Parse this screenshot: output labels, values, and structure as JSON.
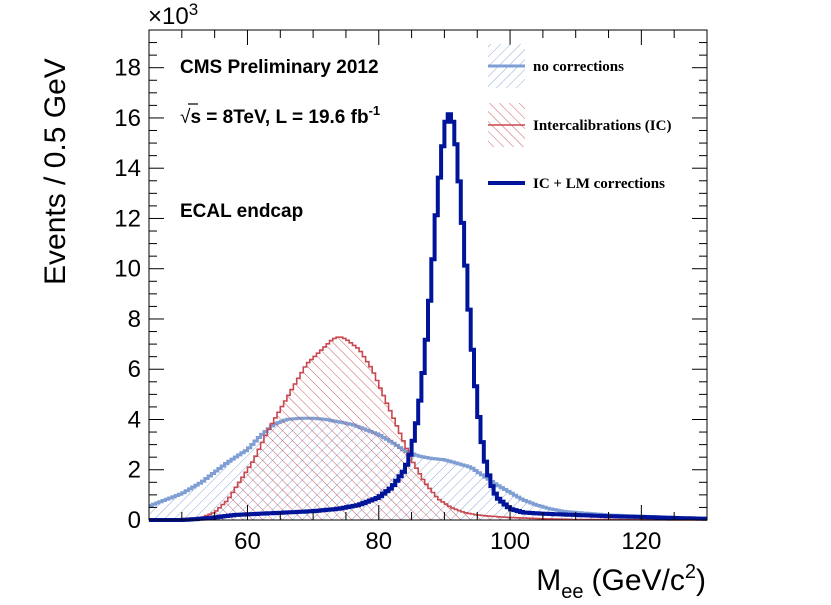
{
  "chart_data": {
    "type": "line",
    "title": "",
    "xlabel": "M",
    "xlabel_sub": "ee",
    "xlabel_unit": "(GeV/c",
    "xlabel_unit_sup": "2",
    "xlabel_unit_close": ")",
    "ylabel": "Events / 0.5 GeV",
    "y_multiplier": "×10",
    "y_multiplier_exp": "3",
    "xlim": [
      45,
      130
    ],
    "ylim": [
      0,
      19.5
    ],
    "x_ticks": [
      60,
      80,
      100,
      120
    ],
    "y_ticks": [
      0,
      2,
      4,
      6,
      8,
      10,
      12,
      14,
      16,
      18
    ],
    "grid": false,
    "legend_position": "top-right",
    "annotations": {
      "line1": "CMS Preliminary 2012",
      "line2_sqrt": "√",
      "line2_main": "s = 8TeV, L = 19.6 fb",
      "line2_sup": "-1",
      "line3": "ECAL endcap"
    },
    "series": [
      {
        "name": "no corrections",
        "color": "#7f9ed4",
        "fill": "hatch-blue",
        "x": [
          45,
          47,
          50,
          53,
          55,
          57,
          60,
          62,
          64,
          66,
          68,
          70,
          72,
          74,
          76,
          78,
          80,
          82,
          84,
          86,
          88,
          90,
          92,
          94,
          96,
          98,
          100,
          102,
          104,
          106,
          108,
          110,
          115,
          120,
          125,
          130
        ],
        "y": [
          0.55,
          0.75,
          1.05,
          1.5,
          1.9,
          2.3,
          2.8,
          3.35,
          3.8,
          4.0,
          4.05,
          4.05,
          4.0,
          3.9,
          3.8,
          3.6,
          3.4,
          3.1,
          2.75,
          2.55,
          2.45,
          2.4,
          2.25,
          2.1,
          1.75,
          1.4,
          1.1,
          0.8,
          0.6,
          0.45,
          0.35,
          0.3,
          0.2,
          0.15,
          0.1,
          0.05
        ]
      },
      {
        "name": "Intercalibrations (IC)",
        "color": "#c8484f",
        "fill": "hatch-red",
        "x": [
          45,
          50,
          53,
          55,
          57,
          59,
          61,
          63,
          65,
          67,
          69,
          71,
          73,
          74,
          75,
          77,
          79,
          81,
          83,
          85,
          87,
          89,
          91,
          93,
          95,
          97,
          100,
          105,
          110,
          130
        ],
        "y": [
          0.0,
          0.05,
          0.1,
          0.3,
          0.8,
          1.6,
          2.4,
          3.5,
          4.4,
          5.3,
          6.2,
          6.7,
          7.2,
          7.3,
          7.2,
          6.8,
          6.0,
          4.8,
          3.6,
          2.4,
          1.5,
          0.85,
          0.5,
          0.3,
          0.2,
          0.15,
          0.1,
          0.05,
          0.02,
          0.0
        ]
      },
      {
        "name": "IC + LM corrections",
        "color": "#001499",
        "fill": "none",
        "x": [
          45,
          50,
          53,
          55,
          58,
          62,
          66,
          70,
          74,
          77,
          80,
          82,
          84,
          85,
          86,
          87,
          88,
          89,
          90,
          90.5,
          91,
          91.5,
          92,
          93,
          94,
          95,
          96,
          97,
          98,
          100,
          102,
          105,
          110,
          115,
          120,
          125,
          130
        ],
        "y": [
          0.0,
          0.0,
          0.05,
          0.1,
          0.2,
          0.25,
          0.3,
          0.35,
          0.45,
          0.6,
          0.9,
          1.3,
          2.0,
          2.8,
          4.2,
          6.4,
          9.5,
          13.0,
          15.5,
          16.2,
          16.1,
          15.6,
          14.3,
          11.0,
          7.5,
          4.6,
          2.6,
          1.5,
          0.9,
          0.45,
          0.3,
          0.25,
          0.2,
          0.15,
          0.12,
          0.08,
          0.05
        ]
      }
    ]
  }
}
